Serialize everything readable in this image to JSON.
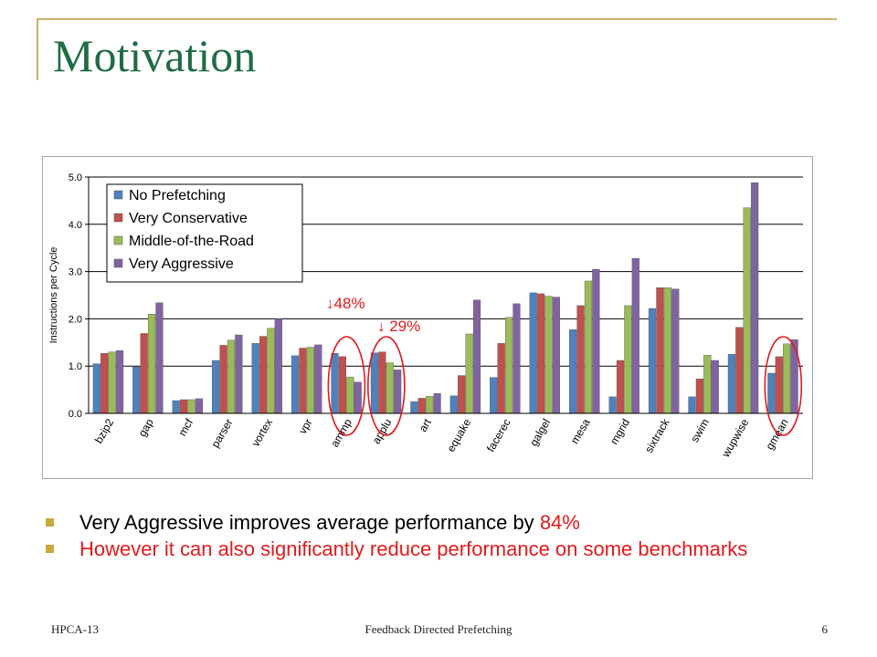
{
  "slide": {
    "title": "Motivation",
    "footer_left": "HPCA-13",
    "footer_center": "Feedback Directed Prefetching",
    "page_number": "6"
  },
  "bullets": [
    {
      "text_before": "Very Aggressive improves average performance by ",
      "highlight": "84%",
      "color": "#000000",
      "highlight_color": "#e31a1c"
    },
    {
      "text_before": "However it can also significantly reduce performance on some benchmarks",
      "highlight": "",
      "color": "#e31a1c",
      "highlight_color": "#e31a1c"
    }
  ],
  "chart_data": {
    "type": "bar",
    "title": "",
    "xlabel": "",
    "ylabel": "Instructions per Cycle",
    "ylim": [
      0,
      5
    ],
    "yticks": [
      "0.0",
      "1.0",
      "2.0",
      "3.0",
      "4.0",
      "5.0"
    ],
    "grid": true,
    "legend_position": "top-left",
    "categories": [
      "bzip2",
      "gap",
      "mcf",
      "parser",
      "vortex",
      "vpr",
      "ammp",
      "applu",
      "art",
      "equake",
      "facerec",
      "galgel",
      "mesa",
      "mgrid",
      "sixtrack",
      "swim",
      "wupwise",
      "gmean"
    ],
    "series": [
      {
        "name": "No Prefetching",
        "color": "#4f81bd",
        "values": [
          1.05,
          0.98,
          0.27,
          1.12,
          1.48,
          1.22,
          1.27,
          1.28,
          0.25,
          0.37,
          0.76,
          2.55,
          1.77,
          0.35,
          2.22,
          0.35,
          1.25,
          0.85
        ]
      },
      {
        "name": "Very Conservative",
        "color": "#c0504d",
        "values": [
          1.27,
          1.69,
          0.29,
          1.44,
          1.63,
          1.38,
          1.2,
          1.3,
          0.32,
          0.8,
          1.48,
          2.53,
          2.28,
          1.12,
          2.66,
          0.73,
          1.82,
          1.2
        ]
      },
      {
        "name": "Middle-of-the-Road",
        "color": "#9bbb59",
        "values": [
          1.3,
          2.1,
          0.29,
          1.55,
          1.8,
          1.4,
          0.77,
          1.07,
          0.36,
          1.68,
          2.03,
          2.48,
          2.8,
          2.28,
          2.66,
          1.23,
          4.35,
          1.47
        ]
      },
      {
        "name": "Very Aggressive",
        "color": "#8064a2",
        "values": [
          1.33,
          2.34,
          0.31,
          1.66,
          2.0,
          1.45,
          0.66,
          0.92,
          0.42,
          2.4,
          2.32,
          2.46,
          3.05,
          3.28,
          2.63,
          1.12,
          4.88,
          1.56
        ]
      }
    ],
    "annotations": [
      {
        "text": "↓48%",
        "color": "#e31a1c"
      },
      {
        "text": "↓ 29%",
        "color": "#e31a1c"
      }
    ],
    "highlighted_categories": [
      "ammp",
      "applu",
      "gmean"
    ],
    "highlight_color": "#e31a1c"
  }
}
